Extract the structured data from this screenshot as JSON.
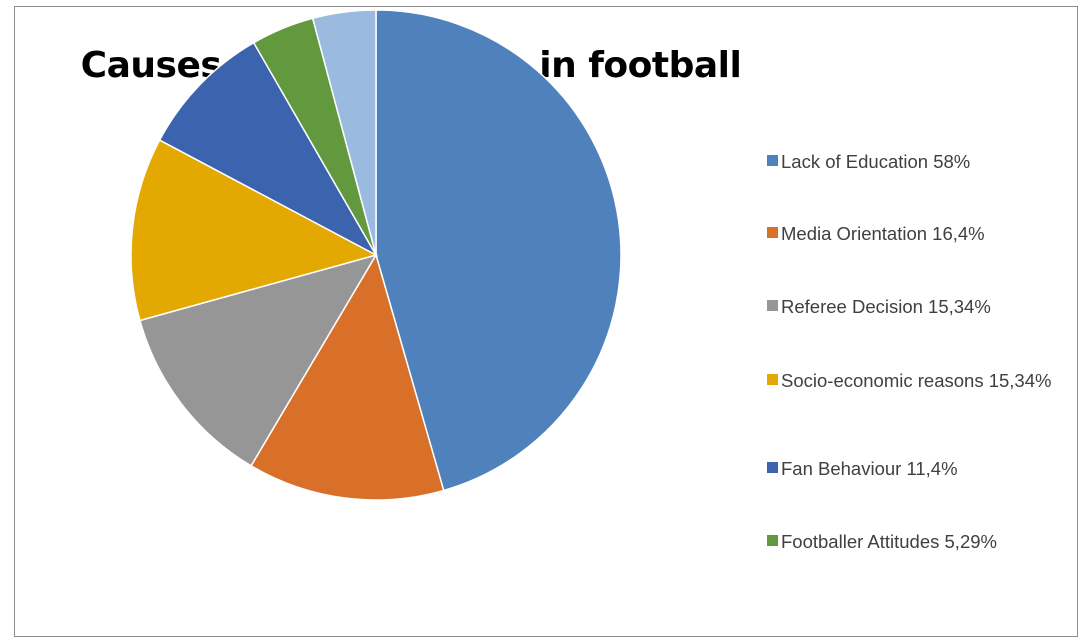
{
  "chart_data": {
    "type": "pie",
    "title": "Causes of the violence in football",
    "slices": [
      {
        "label": "Lack of Education 58%",
        "value": 46.0,
        "color": "#4f81bd"
      },
      {
        "label": "Media Orientation 16,4%",
        "value": 13.1,
        "color": "#d8702a"
      },
      {
        "label": " Referee Decision 15,34%",
        "value": 12.3,
        "color": "#969696"
      },
      {
        "label": "Socio-economic reasons 15,34%",
        "value": 12.2,
        "color": "#e3a801"
      },
      {
        "label": "Fan Behaviour 11,4%",
        "value": 9.0,
        "color": "#3c63ad"
      },
      {
        "label": "Footballer Attitudes 5,29%",
        "value": 4.2,
        "color": "#62993e"
      },
      {
        "label": "",
        "value": 4.2,
        "color": "#9bbae0"
      }
    ],
    "start_angle_deg": 0,
    "direction": "clockwise",
    "legend_position": "right"
  }
}
